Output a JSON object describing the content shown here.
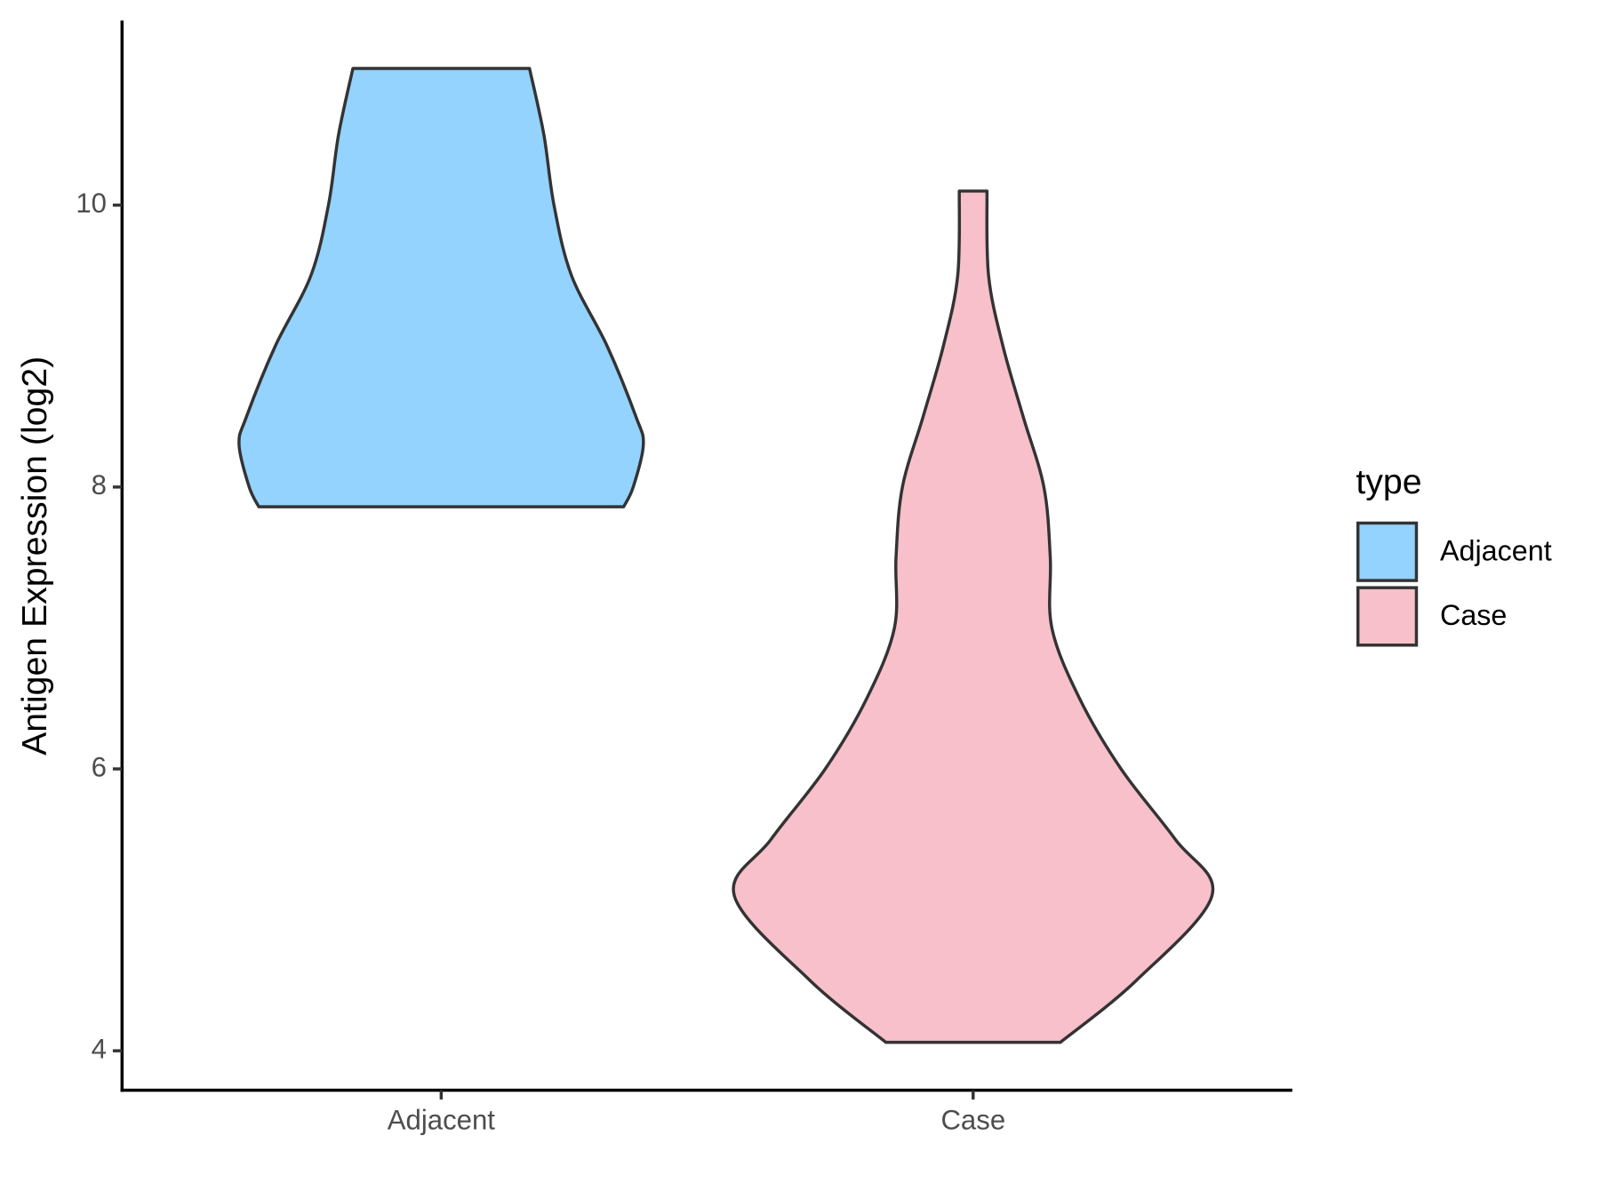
{
  "chart_data": {
    "type": "violin",
    "y_label": "Antigen Expression (log2)",
    "categories": [
      "Adjacent",
      "Case"
    ],
    "legend_title": "type",
    "legend_position": "right",
    "series": [
      {
        "name": "Adjacent",
        "color": "#93d3fe",
        "y": [
          10.97,
          10.5,
          10.0,
          9.5,
          9.0,
          8.5,
          8.3,
          8.0,
          7.86
        ],
        "half_width": [
          0.166,
          0.193,
          0.212,
          0.245,
          0.312,
          0.366,
          0.38,
          0.361,
          0.343
        ]
      },
      {
        "name": "Case",
        "color": "#f7c0cb",
        "y": [
          10.1,
          9.5,
          9.0,
          8.5,
          8.0,
          7.5,
          7.0,
          6.5,
          6.0,
          5.5,
          5.1,
          4.5,
          4.06
        ],
        "half_width": [
          0.026,
          0.029,
          0.056,
          0.094,
          0.133,
          0.145,
          0.148,
          0.2,
          0.278,
          0.38,
          0.449,
          0.307,
          0.164
        ]
      }
    ],
    "ylim": [
      3.72,
      11.31
    ],
    "yticks": [
      4,
      6,
      8,
      10
    ],
    "grid": false
  }
}
